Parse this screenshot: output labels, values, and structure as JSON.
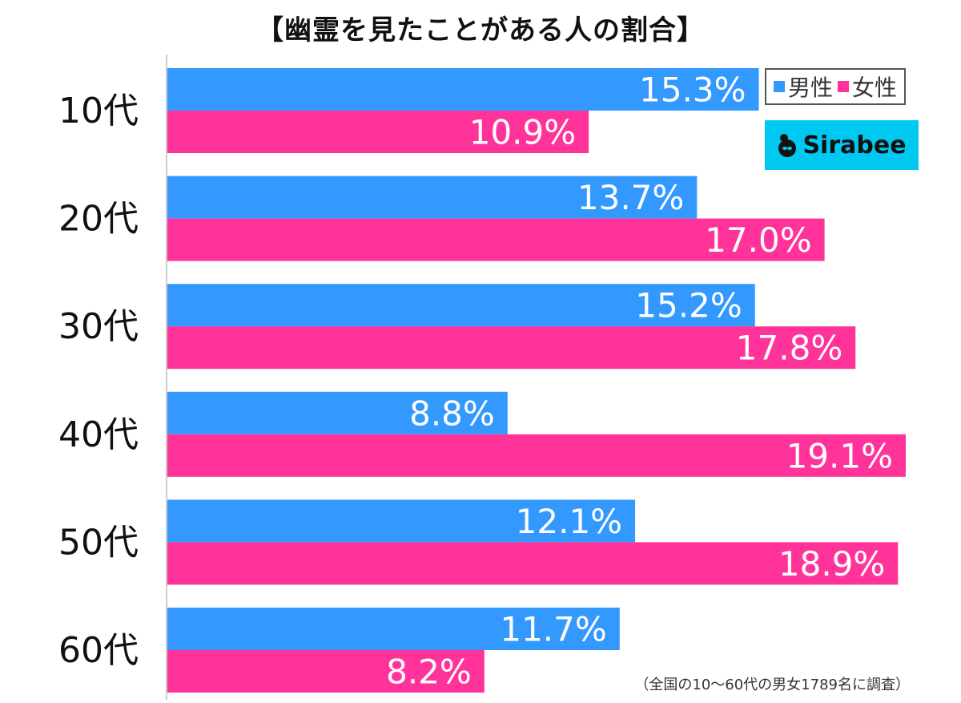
{
  "chart_data": {
    "type": "bar",
    "orientation": "horizontal",
    "title": "【幽霊を見たことがある人の割合】",
    "categories": [
      "10代",
      "20代",
      "30代",
      "40代",
      "50代",
      "60代"
    ],
    "series": [
      {
        "name": "男性",
        "color": "#3399ff",
        "values": [
          15.3,
          13.7,
          15.2,
          8.8,
          12.1,
          11.7
        ],
        "labels": [
          "15.3%",
          "13.7%",
          "15.2%",
          "8.8%",
          "12.1%",
          "11.7%"
        ]
      },
      {
        "name": "女性",
        "color": "#ff3399",
        "values": [
          10.9,
          17.0,
          17.8,
          19.1,
          18.9,
          8.2
        ],
        "labels": [
          "10.9%",
          "17.0%",
          "17.8%",
          "19.1%",
          "18.9%",
          "8.2%"
        ]
      }
    ],
    "unit": "%",
    "xlim": [
      0,
      19.1
    ],
    "grid": false,
    "legend_position": "top-right"
  },
  "legend": {
    "items": [
      {
        "label": "男性",
        "color": "#3399ff"
      },
      {
        "label": "女性",
        "color": "#ff3399"
      }
    ]
  },
  "logo": {
    "text": "Sirabee",
    "color": "#00c8f0"
  },
  "footnote": "（全国の10〜60代の男女1789名に調査）"
}
